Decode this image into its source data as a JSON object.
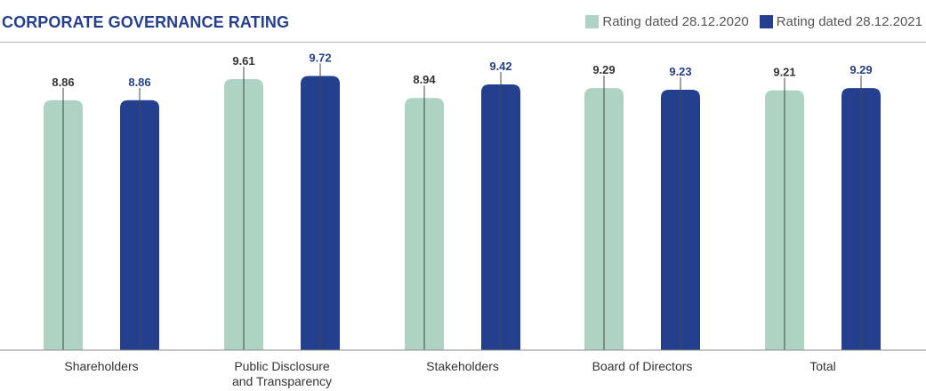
{
  "title": "CORPORATE GOVERNANCE RATING",
  "colors": {
    "title": "#253f8f",
    "series_2020": "#aed3c3",
    "series_2021": "#253f8f",
    "label_2020": "#333333",
    "label_2021": "#253f8f",
    "axis": "#8c8c8c",
    "bar_line": "#3a4a4a"
  },
  "chart_data": {
    "type": "bar",
    "title": "CORPORATE GOVERNANCE RATING",
    "xlabel": "",
    "ylabel": "",
    "ylim": [
      0,
      10.9
    ],
    "grid": false,
    "legend_position": "top-right",
    "categories": [
      [
        "Shareholders"
      ],
      [
        "Public Disclosure",
        "and Transparency"
      ],
      [
        "Stakeholders"
      ],
      [
        "Board of Directors"
      ],
      [
        "Total"
      ]
    ],
    "series": [
      {
        "name": "Rating dated 28.12.2020",
        "color": "#aed3c3",
        "label_color": "#333333",
        "values": [
          8.86,
          9.61,
          8.94,
          9.29,
          9.21
        ],
        "labels": [
          "8.86",
          "9.61",
          "8.94",
          "9.29",
          "9.21"
        ]
      },
      {
        "name": "Rating dated 28.12.2021",
        "color": "#253f8f",
        "label_color": "#253f8f",
        "values": [
          8.86,
          9.72,
          9.42,
          9.23,
          9.29
        ],
        "labels": [
          "8.86",
          "9.72",
          "9.42",
          "9.23",
          "9.29"
        ]
      }
    ]
  }
}
